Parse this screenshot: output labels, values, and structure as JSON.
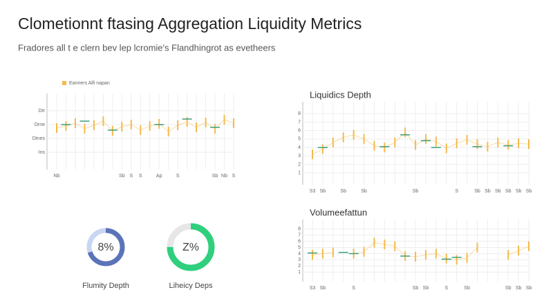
{
  "header": {
    "title": "Clometionnt ftasing Aggregation Liquidity Metrics",
    "subtitle": "Fradores all t e clern bev lep lcromie's Flandhingrot as evetheers"
  },
  "chart_data": [
    {
      "type": "line",
      "categories": [
        "Nb",
        null,
        null,
        null,
        null,
        null,
        null,
        "Sb",
        "S",
        "S",
        null,
        "Ap",
        null,
        "S",
        null,
        null,
        null,
        "Sb",
        "Nb",
        "S"
      ],
      "ylim": [
        0,
        10
      ],
      "yticks": [
        {
          "value": 2,
          "label": "Ins"
        },
        {
          "value": 4,
          "label": "Dtnes"
        },
        {
          "value": 6,
          "label": "Orne"
        },
        {
          "value": 8,
          "label": "Dtr"
        }
      ],
      "series": [
        {
          "name": "Eanners Alfi napan",
          "color": "#f5b94a",
          "values": [
            5.5,
            5.8,
            6.2,
            5.4,
            5.9,
            6.5,
            5.1,
            5.7,
            6.0,
            5.2,
            5.8,
            6.1,
            5.0,
            5.9,
            6.4,
            5.6,
            6.3,
            5.4,
            6.7,
            6.2
          ]
        },
        {
          "color": "#3a9e7a",
          "values": [
            null,
            6.0,
            null,
            6.5,
            null,
            null,
            5.2,
            null,
            null,
            null,
            null,
            6.0,
            null,
            null,
            6.8,
            null,
            null,
            5.6,
            null,
            null
          ]
        }
      ]
    },
    {
      "type": "line",
      "title": "Liquidics Depth",
      "categories": [
        "S3",
        "Sb",
        null,
        "Sb",
        null,
        "Sb",
        null,
        null,
        null,
        null,
        "Sb",
        null,
        null,
        null,
        "S",
        null,
        "Sb",
        "Sb",
        "Sb",
        "Sb",
        "Sb",
        "Sb"
      ],
      "ylim": [
        0,
        9
      ],
      "yticks": [
        1,
        2,
        3,
        4,
        5,
        6,
        7,
        8
      ],
      "series": [
        {
          "color": "#f5b94a",
          "values": [
            3.2,
            3.8,
            4.6,
            5.2,
            5.5,
            5.0,
            4.2,
            4.0,
            4.6,
            5.8,
            4.3,
            5.0,
            4.7,
            3.9,
            4.5,
            4.9,
            4.4,
            4.1,
            4.6,
            4.3,
            4.5,
            4.4
          ]
        },
        {
          "color": "#3a9e7a",
          "values": [
            null,
            4.0,
            null,
            null,
            null,
            null,
            null,
            4.1,
            null,
            5.5,
            null,
            4.8,
            4.0,
            null,
            null,
            null,
            4.1,
            null,
            null,
            4.2,
            null,
            null
          ]
        }
      ]
    },
    {
      "type": "line",
      "title": "Volumeefattun",
      "categories": [
        "S3",
        "Sb",
        null,
        null,
        "S",
        null,
        null,
        null,
        null,
        null,
        "Sb",
        "Sb",
        null,
        "S",
        null,
        "Sb",
        null,
        null,
        null,
        "Sb",
        "Sb",
        "Sb"
      ],
      "ylim": [
        0,
        9
      ],
      "yticks": [
        1,
        2,
        3,
        4,
        5,
        6,
        7,
        8
      ],
      "series": [
        {
          "color": "#f5b94a",
          "values": [
            3.8,
            4.0,
            4.2,
            null,
            4.0,
            4.3,
            5.8,
            5.5,
            5.2,
            3.6,
            3.5,
            3.8,
            4.0,
            3.2,
            3.0,
            3.3,
            5.0,
            null,
            null,
            3.8,
            4.5,
            5.2
          ]
        },
        {
          "color": "#3a9e7a",
          "values": [
            4.1,
            null,
            null,
            4.2,
            4.0,
            null,
            null,
            null,
            null,
            3.6,
            null,
            null,
            null,
            3.1,
            3.4,
            null,
            null,
            null,
            null,
            null,
            null,
            null
          ]
        }
      ]
    },
    {
      "type": "donut",
      "center_label": "8%",
      "label": "Flumity Depth",
      "values": [
        70,
        30
      ],
      "colors": [
        "#5b73b8",
        "#c9d6f2"
      ]
    },
    {
      "type": "donut",
      "center_label": "Z%",
      "label": "Liheicy Deps",
      "values": [
        75,
        25
      ],
      "colors": [
        "#2fcf7e",
        "#e6e6e6"
      ]
    }
  ]
}
